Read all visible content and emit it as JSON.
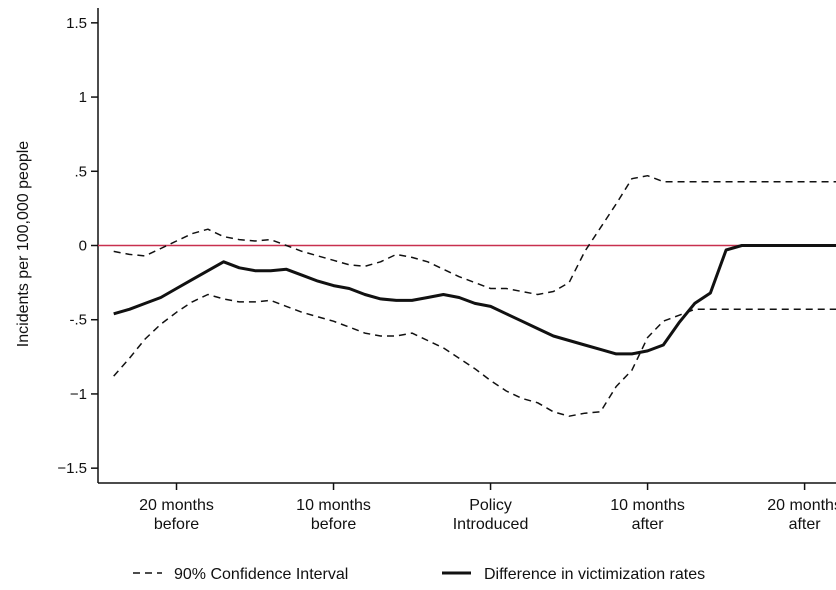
{
  "chart_data": {
    "type": "line",
    "title": "",
    "xlabel": "",
    "ylabel": "Incidents per 100,000 people",
    "xlim": [
      -25,
      22
    ],
    "ylim": [
      -1.6,
      1.6
    ],
    "x_ticks": [
      {
        "value": -20,
        "lines": [
          "20 months",
          "before"
        ]
      },
      {
        "value": -10,
        "lines": [
          "10 months",
          "before"
        ]
      },
      {
        "value": 0,
        "lines": [
          "Policy",
          "Introduced"
        ]
      },
      {
        "value": 10,
        "lines": [
          "10 months",
          "after"
        ]
      },
      {
        "value": 20,
        "lines": [
          "20 months",
          "after"
        ]
      }
    ],
    "y_ticks": [
      {
        "value": 1.5,
        "label": "1.5"
      },
      {
        "value": 1,
        "label": "1"
      },
      {
        "value": 0.5,
        "label": ".5"
      },
      {
        "value": 0,
        "label": "0"
      },
      {
        "value": -0.5,
        "label": "-.5"
      },
      {
        "value": -1,
        "label": "−1"
      },
      {
        "value": -1.5,
        "label": "−1.5"
      }
    ],
    "grid": false,
    "reference_line": {
      "y": 0,
      "color": "#c8304f"
    },
    "legend": {
      "placement": "bottom",
      "entries": [
        {
          "label": "90% Confidence Interval",
          "style": "dashed"
        },
        {
          "label": "Difference in victimization rates",
          "style": "solid"
        }
      ]
    },
    "x": [
      -24,
      -23,
      -22,
      -21,
      -20,
      -19,
      -18,
      -17,
      -16,
      -15,
      -14,
      -13,
      -12,
      -11,
      -10,
      -9,
      -8,
      -7,
      -6,
      -5,
      -4,
      -3,
      -2,
      -1,
      0,
      1,
      2,
      3,
      4,
      5,
      6,
      7,
      8,
      9,
      10,
      11,
      12,
      13,
      14,
      15,
      16,
      17,
      18,
      19,
      20,
      21,
      22
    ],
    "series": [
      {
        "name": "Difference in victimization rates",
        "style": "solid",
        "values": [
          -0.46,
          -0.43,
          -0.39,
          -0.35,
          -0.29,
          -0.23,
          -0.17,
          -0.11,
          -0.15,
          -0.17,
          -0.17,
          -0.16,
          -0.2,
          -0.24,
          -0.27,
          -0.29,
          -0.33,
          -0.36,
          -0.37,
          -0.37,
          -0.35,
          -0.33,
          -0.35,
          -0.39,
          -0.41,
          -0.46,
          -0.51,
          -0.56,
          -0.61,
          -0.64,
          -0.67,
          -0.7,
          -0.73,
          -0.73,
          -0.71,
          -0.67,
          -0.52,
          -0.39,
          -0.32,
          -0.03,
          0.0,
          0.0,
          0.0,
          0.0,
          0.0,
          0.0,
          0.0
        ]
      },
      {
        "name": "90% CI upper",
        "style": "dashed",
        "values": [
          -0.04,
          -0.06,
          -0.07,
          -0.02,
          0.03,
          0.08,
          0.11,
          0.06,
          0.04,
          0.03,
          0.04,
          0.0,
          -0.04,
          -0.07,
          -0.1,
          -0.13,
          -0.14,
          -0.11,
          -0.06,
          -0.08,
          -0.11,
          -0.16,
          -0.21,
          -0.25,
          -0.29,
          -0.29,
          -0.31,
          -0.33,
          -0.31,
          -0.25,
          -0.04,
          0.12,
          0.28,
          0.45,
          0.47,
          0.43,
          0.43,
          0.43,
          0.43,
          0.43,
          0.43,
          0.43,
          0.43,
          0.43,
          0.43,
          0.43,
          0.43
        ]
      },
      {
        "name": "90% CI lower",
        "style": "dashed",
        "values": [
          -0.88,
          -0.76,
          -0.63,
          -0.53,
          -0.45,
          -0.38,
          -0.33,
          -0.36,
          -0.38,
          -0.38,
          -0.37,
          -0.41,
          -0.45,
          -0.48,
          -0.51,
          -0.55,
          -0.59,
          -0.61,
          -0.61,
          -0.59,
          -0.64,
          -0.69,
          -0.76,
          -0.83,
          -0.91,
          -0.98,
          -1.03,
          -1.06,
          -1.12,
          -1.15,
          -1.13,
          -1.12,
          -0.95,
          -0.84,
          -0.62,
          -0.51,
          -0.47,
          -0.43,
          -0.43,
          -0.43,
          -0.43,
          -0.43,
          -0.43,
          -0.43,
          -0.43,
          -0.43,
          -0.43
        ]
      }
    ]
  }
}
